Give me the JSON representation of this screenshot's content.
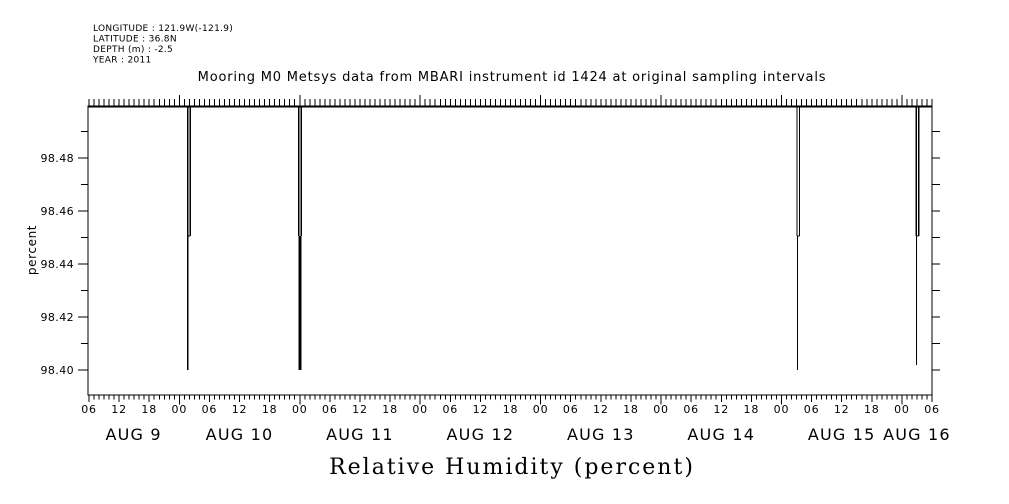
{
  "metadata_block": {
    "lines": [
      "LONGITUDE : 121.9W(-121.9)",
      "LATITUDE : 36.8N",
      "DEPTH (m) : -2.5",
      "YEAR : 2011"
    ]
  },
  "title": "Mooring M0 Metsys data from MBARI instrument id 1424 at original sampling intervals",
  "chart_data": {
    "type": "line",
    "title": "Mooring M0 Metsys data from MBARI instrument id 1424 at original sampling intervals",
    "xlabel": "Relative Humidity (percent)",
    "ylabel": "percent",
    "grid": false,
    "legend": "none",
    "ylim": [
      98.3906,
      98.4996
    ],
    "y_major_tick_values": [
      98.4,
      98.42,
      98.44,
      98.46,
      98.48
    ],
    "y_tick_labels": [
      "98.40",
      "98.42",
      "98.44",
      "98.46",
      "98.48"
    ],
    "y_minor_step": 0.01,
    "x_axis": {
      "start_hour": 5.8,
      "end_hour": 174.0,
      "epoch": "hours since AUG 9 00:00, year 2011",
      "minor_tick_step_hours": 1,
      "label_step_hours": 6,
      "hour_labels": [
        {
          "t": 6,
          "label": "06"
        },
        {
          "t": 12,
          "label": "12"
        },
        {
          "t": 18,
          "label": "18"
        },
        {
          "t": 24,
          "label": "00"
        },
        {
          "t": 30,
          "label": "06"
        },
        {
          "t": 36,
          "label": "12"
        },
        {
          "t": 42,
          "label": "18"
        },
        {
          "t": 48,
          "label": "00"
        },
        {
          "t": 54,
          "label": "06"
        },
        {
          "t": 60,
          "label": "12"
        },
        {
          "t": 66,
          "label": "18"
        },
        {
          "t": 72,
          "label": "00"
        },
        {
          "t": 78,
          "label": "06"
        },
        {
          "t": 84,
          "label": "12"
        },
        {
          "t": 90,
          "label": "18"
        },
        {
          "t": 96,
          "label": "00"
        },
        {
          "t": 102,
          "label": "06"
        },
        {
          "t": 108,
          "label": "12"
        },
        {
          "t": 114,
          "label": "18"
        },
        {
          "t": 120,
          "label": "00"
        },
        {
          "t": 126,
          "label": "06"
        },
        {
          "t": 132,
          "label": "12"
        },
        {
          "t": 138,
          "label": "18"
        },
        {
          "t": 144,
          "label": "00"
        },
        {
          "t": 150,
          "label": "06"
        },
        {
          "t": 156,
          "label": "12"
        },
        {
          "t": 162,
          "label": "18"
        },
        {
          "t": 168,
          "label": "00"
        },
        {
          "t": 174,
          "label": "06"
        }
      ],
      "date_labels": [
        {
          "label": "AUG  9",
          "center_hour": 14.9
        },
        {
          "label": "AUG 10",
          "center_hour": 36
        },
        {
          "label": "AUG 11",
          "center_hour": 60
        },
        {
          "label": "AUG 12",
          "center_hour": 84
        },
        {
          "label": "AUG 13",
          "center_hour": 108
        },
        {
          "label": "AUG 14",
          "center_hour": 132
        },
        {
          "label": "AUG 15",
          "center_hour": 156
        },
        {
          "label": "AUG 16",
          "center_hour": 171
        }
      ]
    },
    "series": [
      {
        "name": "relative humidity",
        "unit": "percent",
        "baseline_value": 98.4993,
        "events": [
          {
            "time": "AUG 10 ~01:40",
            "min_value": 98.4,
            "note": "double dip; second trace stops at 98.45"
          },
          {
            "time": "AUG 11 ~00:00",
            "min_value": 98.4,
            "note": "double dip merging below 98.45"
          },
          {
            "time": "AUG 15 ~03:00",
            "min_value": 98.4,
            "note": "double dip to 98.45, thin continuation to 98.40"
          },
          {
            "time": "AUG 16 ~03:00",
            "min_value": 98.4,
            "note": "double dip to 98.45, thin continuation to 98.40"
          }
        ]
      }
    ],
    "baseline": {
      "t1": 5.8,
      "t2": 174.0,
      "value": 98.4993,
      "width": 1.4
    },
    "spike_segments": [
      {
        "t1": 25.65,
        "v1": 98.4993,
        "t2": 25.65,
        "v2": 98.4,
        "w": 1.3
      },
      {
        "t1": 26.15,
        "v1": 98.4993,
        "t2": 26.15,
        "v2": 98.4505,
        "w": 1.3
      },
      {
        "t1": 25.72,
        "v1": 98.4505,
        "t2": 26.15,
        "v2": 98.4505,
        "w": 1.0
      },
      {
        "t1": 47.81,
        "v1": 98.4993,
        "t2": 47.81,
        "v2": 98.4505,
        "w": 1.3
      },
      {
        "t1": 48.29,
        "v1": 98.4993,
        "t2": 48.29,
        "v2": 98.4505,
        "w": 1.3
      },
      {
        "t1": 48.05,
        "v1": 98.4505,
        "t2": 48.05,
        "v2": 98.4,
        "w": 2.8
      },
      {
        "t1": 147.1,
        "v1": 98.4993,
        "t2": 147.1,
        "v2": 98.4505,
        "w": 1.3
      },
      {
        "t1": 147.58,
        "v1": 98.4993,
        "t2": 147.58,
        "v2": 98.4505,
        "w": 1.3
      },
      {
        "t1": 147.1,
        "v1": 98.4505,
        "t2": 147.58,
        "v2": 98.4505,
        "w": 1.0
      },
      {
        "t1": 147.18,
        "v1": 98.4505,
        "t2": 147.18,
        "v2": 98.4,
        "w": 1.2
      },
      {
        "t1": 170.87,
        "v1": 98.4993,
        "t2": 170.87,
        "v2": 98.4505,
        "w": 1.3
      },
      {
        "t1": 171.35,
        "v1": 98.4993,
        "t2": 171.35,
        "v2": 98.4505,
        "w": 1.3
      },
      {
        "t1": 170.87,
        "v1": 98.4505,
        "t2": 171.35,
        "v2": 98.4505,
        "w": 1.0
      },
      {
        "t1": 170.93,
        "v1": 98.4505,
        "t2": 170.93,
        "v2": 98.402,
        "w": 1.2
      }
    ],
    "colors": {
      "line": "#000000",
      "axis": "#000000",
      "background": "#ffffff"
    }
  }
}
